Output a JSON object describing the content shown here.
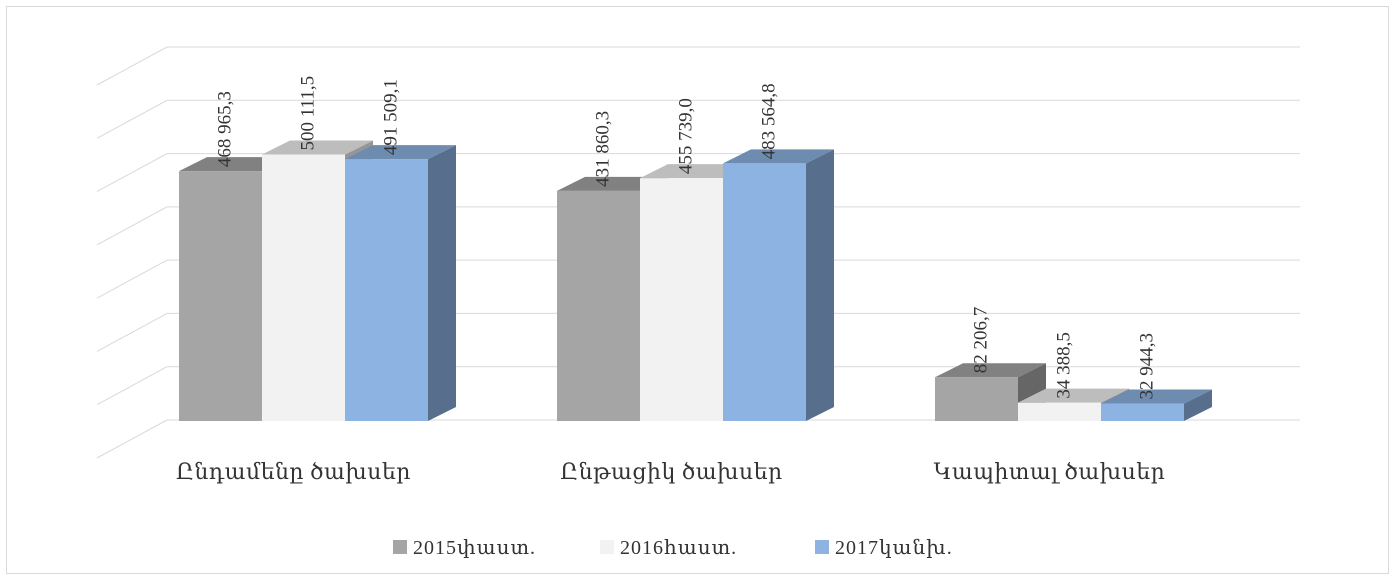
{
  "chart_data": {
    "type": "bar",
    "categories": [
      "Ընդամենը ծախսեր",
      "Ընթացիկ ծախսեր",
      "Կապիտալ ծախսեր"
    ],
    "series": [
      {
        "name": "2015փաստ.",
        "values": [
          468965.3,
          431860.3,
          82206.7
        ],
        "labels": [
          "468 965,3",
          "431 860,3",
          "82 206,7"
        ],
        "color": "#a5a5a5"
      },
      {
        "name": "2016հաստ.",
        "values": [
          500111.5,
          455739.0,
          34388.5
        ],
        "labels": [
          "500 111,5",
          "455 739,0",
          "34 388,5"
        ],
        "color": "#f2f2f2"
      },
      {
        "name": "2017կանխ.",
        "values": [
          491509.1,
          483564.8,
          32944.3
        ],
        "labels": [
          "491 509,1",
          "483 564,8",
          "32 944,3"
        ],
        "color": "#8db3e2"
      }
    ],
    "ylim": [
      0,
      700000
    ],
    "gridlines": true,
    "legend_position": "bottom",
    "style": "3d-clustered-column"
  }
}
